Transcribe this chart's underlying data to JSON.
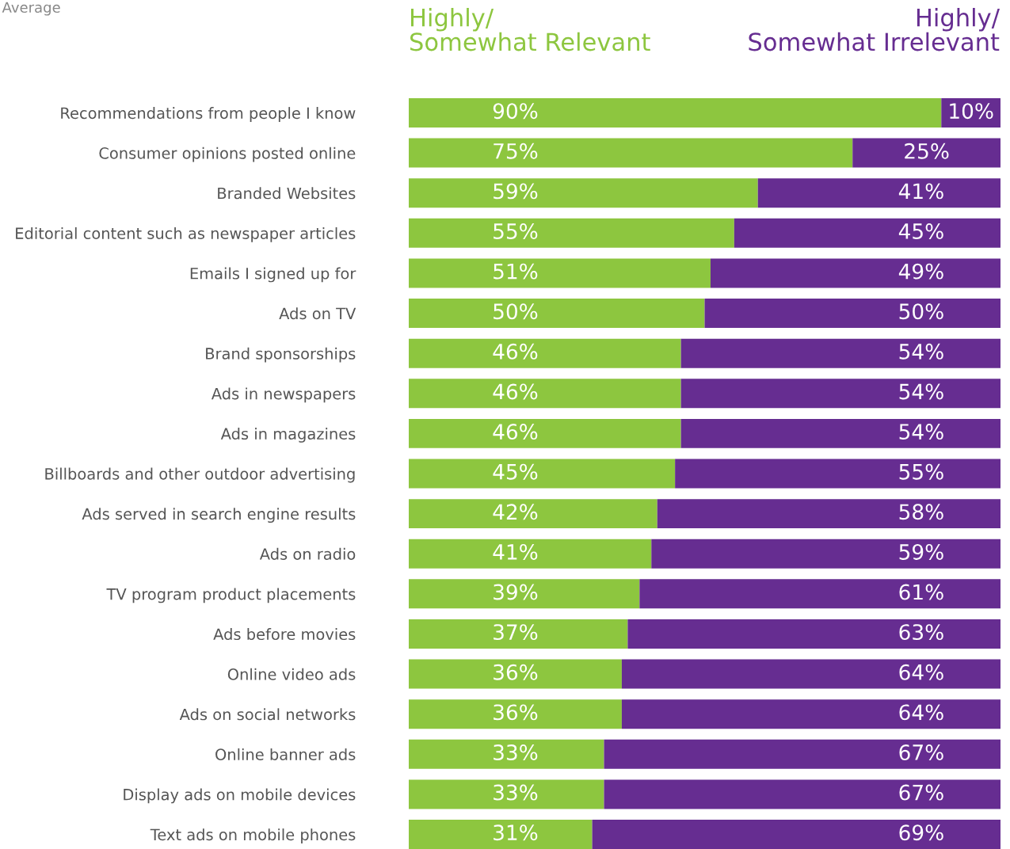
{
  "chart_data": {
    "type": "bar",
    "orientation": "horizontal",
    "stacked": true,
    "legend": false,
    "grid": false,
    "tick_labels": "y",
    "annotations": [
      "Average"
    ],
    "categories": [
      "Recommendations from people I know",
      "Consumer opinions posted online",
      "Branded Websites",
      "Editorial content such as newspaper articles",
      "Emails I signed up for",
      "Ads on TV",
      "Brand sponsorships",
      "Ads in newspapers",
      "Ads in magazines",
      "Billboards and other outdoor advertising",
      "Ads served in search engine results",
      "Ads on radio",
      "TV program product placements",
      "Ads before movies",
      "Online video ads",
      "Ads on social networks",
      "Online banner ads",
      "Display ads on mobile devices",
      "Text ads on mobile phones"
    ],
    "series": [
      {
        "name": "Highly/\nSomewhat Relevant",
        "color": "#8dc63f",
        "values": [
          90,
          75,
          59,
          55,
          51,
          50,
          46,
          46,
          46,
          45,
          42,
          41,
          39,
          37,
          36,
          36,
          33,
          33,
          31
        ],
        "value_labels": [
          "90%",
          "75%",
          "59%",
          "55%",
          "51%",
          "50%",
          "46%",
          "46%",
          "46%",
          "45%",
          "42%",
          "41%",
          "39%",
          "37%",
          "36%",
          "36%",
          "33%",
          "33%",
          "31%"
        ]
      },
      {
        "name": "Highly/\nSomewhat Irrelevant",
        "color": "#662d91",
        "values": [
          10,
          25,
          41,
          45,
          49,
          50,
          54,
          54,
          54,
          55,
          58,
          59,
          61,
          63,
          64,
          64,
          67,
          67,
          69
        ],
        "value_labels": [
          "10%",
          "25%",
          "41%",
          "45%",
          "49%",
          "50%",
          "54%",
          "54%",
          "54%",
          "55%",
          "58%",
          "59%",
          "61%",
          "63%",
          "64%",
          "64%",
          "67%",
          "67%",
          "69%"
        ]
      }
    ]
  }
}
